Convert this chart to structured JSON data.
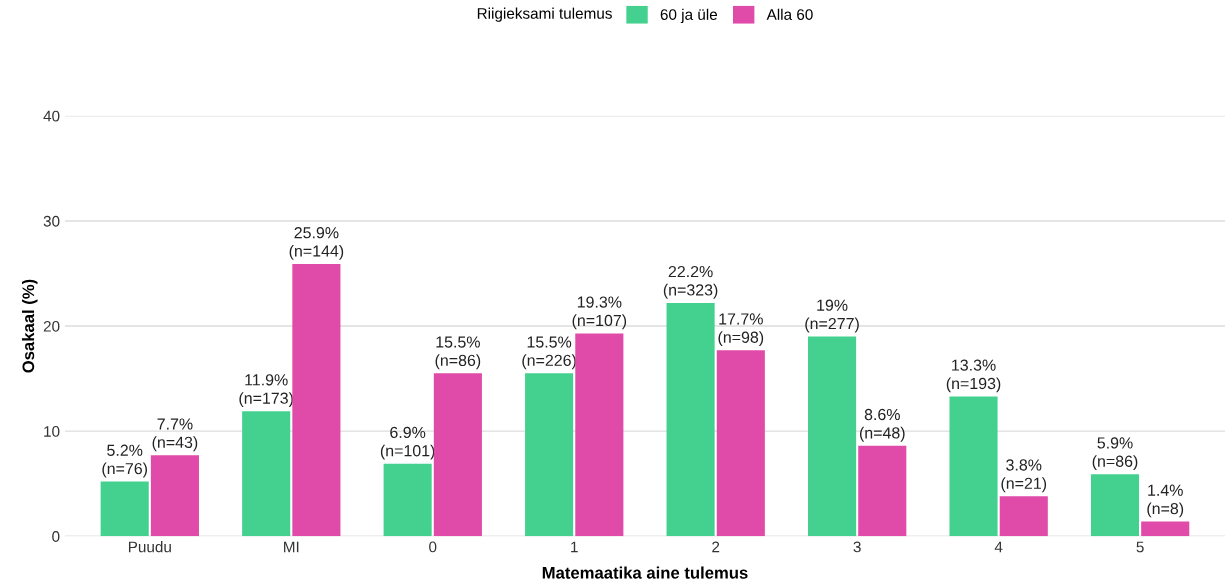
{
  "chart_data": {
    "type": "bar",
    "xlabel": "Matemaatika aine tulemus",
    "ylabel": "Osakaal (%)",
    "legend_title": "Riigieksami tulemus",
    "categories": [
      "Puudu",
      "MI",
      "0",
      "1",
      "2",
      "3",
      "4",
      "5"
    ],
    "series": [
      {
        "name": "60 ja üle",
        "color": "#44d18f",
        "values": [
          5.2,
          11.9,
          6.9,
          15.5,
          22.2,
          19,
          13.3,
          5.9
        ],
        "value_labels": [
          "5.2%\n(n=76)",
          "11.9%\n(n=173)",
          "6.9%\n(n=101)",
          "15.5%\n(n=226)",
          "22.2%\n(n=323)",
          "19%\n(n=277)",
          "13.3%\n(n=193)",
          "5.9%\n(n=86)"
        ]
      },
      {
        "name": "Alla 60",
        "color": "#e04aa8",
        "values": [
          7.7,
          25.9,
          15.5,
          19.3,
          17.7,
          8.6,
          3.8,
          1.4
        ],
        "value_labels": [
          "7.7%\n(n=43)",
          "25.9%\n(n=144)",
          "15.5%\n(n=86)",
          "19.3%\n(n=107)",
          "17.7%\n(n=98)",
          "8.6%\n(n=48)",
          "3.8%\n(n=21)",
          "1.4%\n(n=8)"
        ]
      }
    ],
    "ylim": [
      0,
      40
    ],
    "yticks": [
      0,
      10,
      20,
      30,
      40
    ],
    "grid": "y",
    "legend": "top"
  }
}
